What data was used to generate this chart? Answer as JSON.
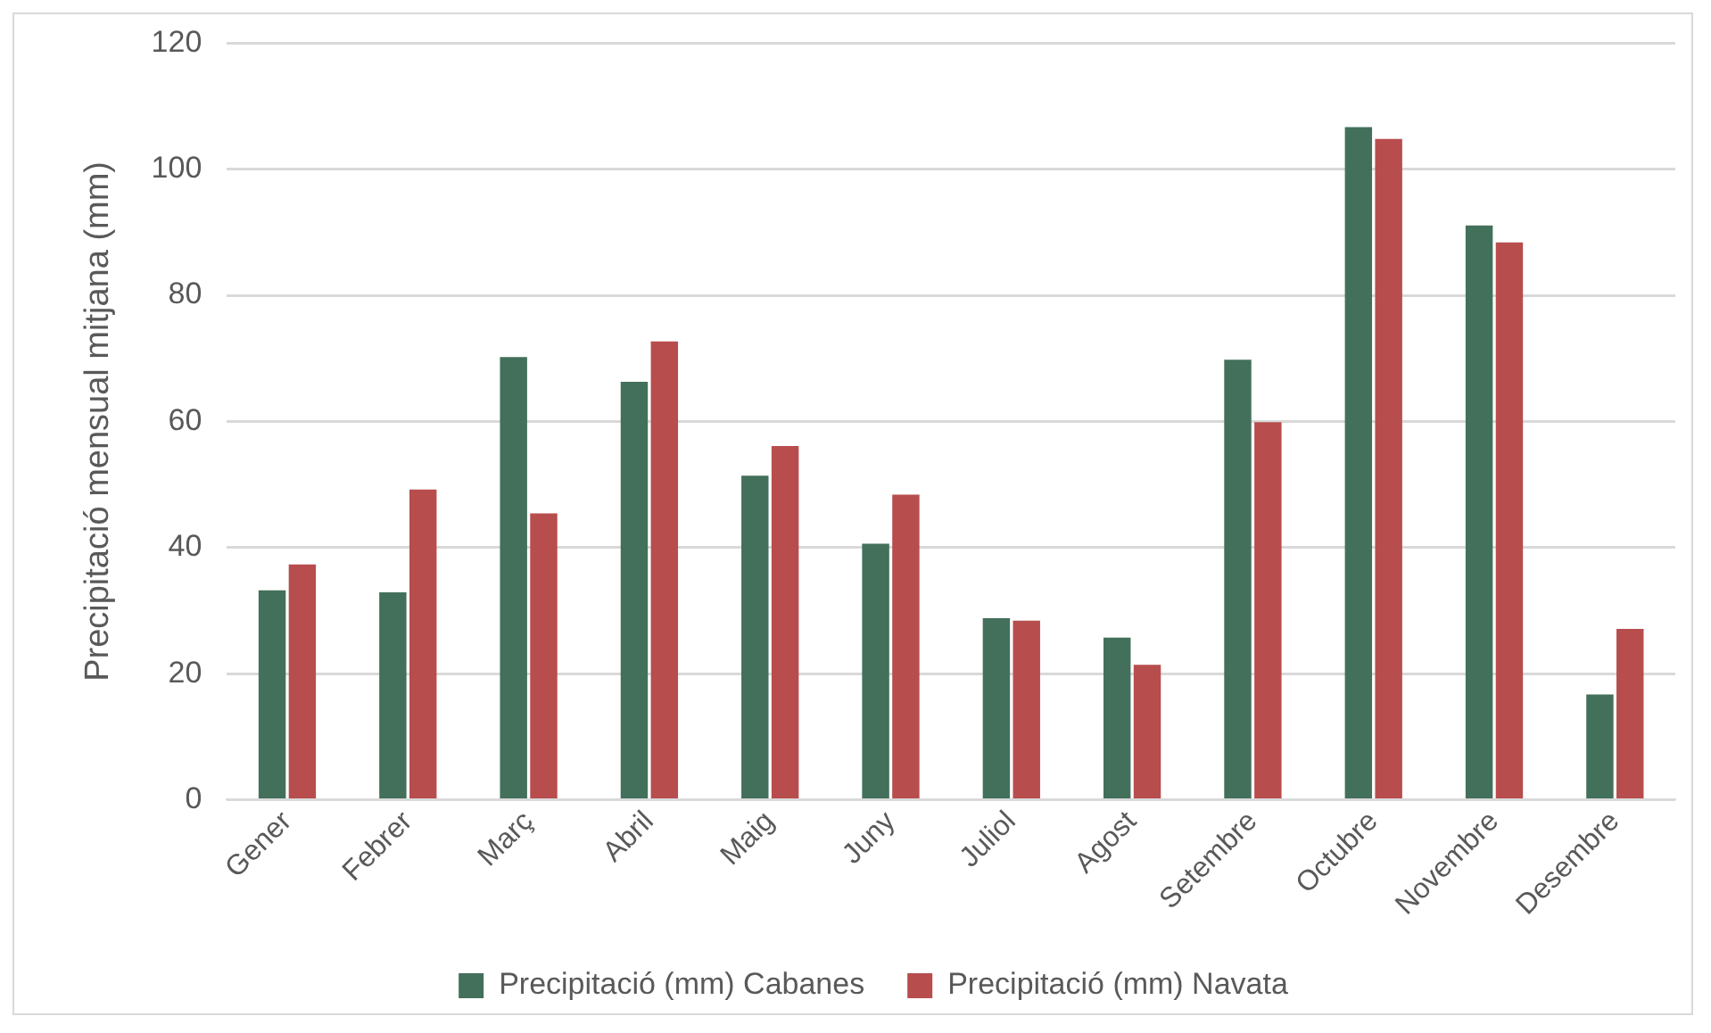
{
  "chart_data": {
    "type": "bar",
    "ylabel": "Precipitació mensual mitjana (mm)",
    "categories": [
      "Gener",
      "Febrer",
      "Març",
      "Abril",
      "Maig",
      "Juny",
      "Juliol",
      "Agost",
      "Setembre",
      "Octubre",
      "Novembre",
      "Desembre"
    ],
    "series": [
      {
        "name": "Precipitació (mm) Cabanes",
        "color": "#43705a",
        "values": [
          33.2,
          32.9,
          70.2,
          66.3,
          51.4,
          40.6,
          28.8,
          25.7,
          69.8,
          106.7,
          91.1,
          16.7
        ]
      },
      {
        "name": "Precipitació (mm) Navata",
        "color": "#b84d4e",
        "values": [
          37.3,
          49.2,
          45.4,
          72.7,
          56.1,
          48.4,
          28.4,
          21.4,
          59.9,
          104.8,
          88.4,
          27.1
        ]
      }
    ],
    "ylim": [
      0,
      120
    ],
    "yticks": [
      0,
      20,
      40,
      60,
      80,
      100,
      120
    ],
    "grid": "y",
    "legend": "bottom"
  }
}
